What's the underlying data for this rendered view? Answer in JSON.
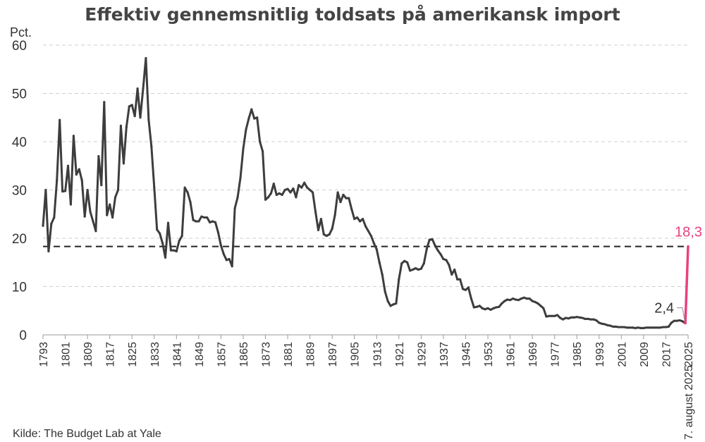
{
  "chart_data": {
    "type": "line",
    "title": "Effektiv gennemsnitlig toldsats på amerikansk import",
    "ylabel": "Pct.",
    "source": "Kilde: The Budget Lab at Yale",
    "ylim": [
      0,
      60
    ],
    "yticks": [
      0,
      10,
      20,
      30,
      40,
      50,
      60
    ],
    "xlim": [
      1793,
      2025
    ],
    "xticks": [
      "1793",
      "1801",
      "1809",
      "1817",
      "1825",
      "1833",
      "1841",
      "1849",
      "1857",
      "1865",
      "1873",
      "1881",
      "1889",
      "1897",
      "1905",
      "1913",
      "1921",
      "1929",
      "1937",
      "1945",
      "1953",
      "1961",
      "1969",
      "1977",
      "1985",
      "1993",
      "2001",
      "2009",
      "2017",
      "2025"
    ],
    "last_tick_label": "7. august 2025",
    "grid": true,
    "colors": {
      "historical": "#3d3d3d",
      "latest": "#e8417f",
      "grid": "#cfcfcf",
      "reference": "#222222"
    },
    "reference_line": {
      "value": 18.3,
      "style": "dashed"
    },
    "annotations": [
      {
        "text": "2,4",
        "x": 2024,
        "y": 2.4
      },
      {
        "text": "18,3",
        "x": 2025,
        "y": 18.3
      }
    ],
    "series": [
      {
        "style": "historical",
        "points": [
          [
            1793,
            22.6
          ],
          [
            1794,
            30.0
          ],
          [
            1795,
            17.3
          ],
          [
            1796,
            23.0
          ],
          [
            1797,
            24.3
          ],
          [
            1798,
            32.0
          ],
          [
            1799,
            44.5
          ],
          [
            1800,
            29.7
          ],
          [
            1801,
            29.8
          ],
          [
            1802,
            35.0
          ],
          [
            1803,
            27.0
          ],
          [
            1804,
            41.2
          ],
          [
            1805,
            33.2
          ],
          [
            1806,
            34.3
          ],
          [
            1807,
            32.0
          ],
          [
            1808,
            24.5
          ],
          [
            1809,
            30.0
          ],
          [
            1810,
            25.5
          ],
          [
            1811,
            23.5
          ],
          [
            1812,
            21.5
          ],
          [
            1813,
            37.0
          ],
          [
            1814,
            31.0
          ],
          [
            1815,
            48.2
          ],
          [
            1816,
            24.8
          ],
          [
            1817,
            27.0
          ],
          [
            1818,
            24.3
          ],
          [
            1819,
            28.5
          ],
          [
            1820,
            30.0
          ],
          [
            1821,
            43.3
          ],
          [
            1822,
            35.5
          ],
          [
            1823,
            43.0
          ],
          [
            1824,
            47.3
          ],
          [
            1825,
            47.6
          ],
          [
            1826,
            45.3
          ],
          [
            1827,
            51.0
          ],
          [
            1828,
            45.0
          ],
          [
            1829,
            51.0
          ],
          [
            1830,
            57.3
          ],
          [
            1831,
            44.5
          ],
          [
            1832,
            39.0
          ],
          [
            1833,
            30.5
          ],
          [
            1834,
            21.8
          ],
          [
            1835,
            21.0
          ],
          [
            1836,
            19.0
          ],
          [
            1837,
            16.0
          ],
          [
            1838,
            23.2
          ],
          [
            1839,
            17.5
          ],
          [
            1840,
            17.5
          ],
          [
            1841,
            17.3
          ],
          [
            1842,
            19.5
          ],
          [
            1843,
            20.5
          ],
          [
            1844,
            30.5
          ],
          [
            1845,
            29.5
          ],
          [
            1846,
            27.5
          ],
          [
            1847,
            23.8
          ],
          [
            1848,
            23.5
          ],
          [
            1849,
            23.5
          ],
          [
            1850,
            24.5
          ],
          [
            1851,
            24.3
          ],
          [
            1852,
            24.3
          ],
          [
            1853,
            23.3
          ],
          [
            1854,
            23.5
          ],
          [
            1855,
            23.3
          ],
          [
            1856,
            21.2
          ],
          [
            1857,
            18.5
          ],
          [
            1858,
            16.7
          ],
          [
            1859,
            15.5
          ],
          [
            1860,
            15.7
          ],
          [
            1861,
            14.2
          ],
          [
            1862,
            26.2
          ],
          [
            1863,
            28.5
          ],
          [
            1864,
            32.5
          ],
          [
            1865,
            38.5
          ],
          [
            1866,
            42.5
          ],
          [
            1867,
            44.8
          ],
          [
            1868,
            46.7
          ],
          [
            1869,
            44.8
          ],
          [
            1870,
            45.0
          ],
          [
            1871,
            40.0
          ],
          [
            1872,
            38.0
          ],
          [
            1873,
            28.0
          ],
          [
            1874,
            28.5
          ],
          [
            1875,
            29.3
          ],
          [
            1876,
            31.3
          ],
          [
            1877,
            29.0
          ],
          [
            1878,
            29.3
          ],
          [
            1879,
            29.0
          ],
          [
            1880,
            30.0
          ],
          [
            1881,
            30.2
          ],
          [
            1882,
            29.5
          ],
          [
            1883,
            30.3
          ],
          [
            1884,
            28.5
          ],
          [
            1885,
            31.0
          ],
          [
            1886,
            30.5
          ],
          [
            1887,
            31.5
          ],
          [
            1888,
            30.5
          ],
          [
            1889,
            30.0
          ],
          [
            1890,
            29.5
          ],
          [
            1891,
            25.5
          ],
          [
            1892,
            21.7
          ],
          [
            1893,
            24.0
          ],
          [
            1894,
            20.8
          ],
          [
            1895,
            20.5
          ],
          [
            1896,
            20.8
          ],
          [
            1897,
            22.0
          ],
          [
            1898,
            24.8
          ],
          [
            1899,
            29.5
          ],
          [
            1900,
            27.5
          ],
          [
            1901,
            29.0
          ],
          [
            1902,
            28.3
          ],
          [
            1903,
            28.3
          ],
          [
            1904,
            26.0
          ],
          [
            1905,
            24.0
          ],
          [
            1906,
            24.3
          ],
          [
            1907,
            23.5
          ],
          [
            1908,
            24.0
          ],
          [
            1909,
            22.5
          ],
          [
            1910,
            21.5
          ],
          [
            1911,
            20.5
          ],
          [
            1912,
            19.0
          ],
          [
            1913,
            17.7
          ],
          [
            1914,
            15.0
          ],
          [
            1915,
            12.5
          ],
          [
            1916,
            9.0
          ],
          [
            1917,
            7.0
          ],
          [
            1918,
            6.0
          ],
          [
            1919,
            6.3
          ],
          [
            1920,
            6.5
          ],
          [
            1921,
            11.5
          ],
          [
            1922,
            14.8
          ],
          [
            1923,
            15.3
          ],
          [
            1924,
            15.0
          ],
          [
            1925,
            13.3
          ],
          [
            1926,
            13.5
          ],
          [
            1927,
            13.8
          ],
          [
            1928,
            13.5
          ],
          [
            1929,
            13.7
          ],
          [
            1930,
            14.8
          ],
          [
            1931,
            17.8
          ],
          [
            1932,
            19.7
          ],
          [
            1933,
            19.8
          ],
          [
            1934,
            18.5
          ],
          [
            1935,
            17.5
          ],
          [
            1936,
            16.7
          ],
          [
            1937,
            15.7
          ],
          [
            1938,
            15.5
          ],
          [
            1939,
            14.5
          ],
          [
            1940,
            12.5
          ],
          [
            1941,
            13.5
          ],
          [
            1942,
            11.5
          ],
          [
            1943,
            11.5
          ],
          [
            1944,
            9.5
          ],
          [
            1945,
            9.3
          ],
          [
            1946,
            9.8
          ],
          [
            1947,
            7.5
          ],
          [
            1948,
            5.7
          ],
          [
            1949,
            5.8
          ],
          [
            1950,
            6.0
          ],
          [
            1951,
            5.5
          ],
          [
            1952,
            5.3
          ],
          [
            1953,
            5.5
          ],
          [
            1954,
            5.2
          ],
          [
            1955,
            5.5
          ],
          [
            1956,
            5.7
          ],
          [
            1957,
            5.8
          ],
          [
            1958,
            6.5
          ],
          [
            1959,
            7.0
          ],
          [
            1960,
            7.3
          ],
          [
            1961,
            7.2
          ],
          [
            1962,
            7.5
          ],
          [
            1963,
            7.3
          ],
          [
            1964,
            7.2
          ],
          [
            1965,
            7.5
          ],
          [
            1966,
            7.7
          ],
          [
            1967,
            7.5
          ],
          [
            1968,
            7.5
          ],
          [
            1969,
            7.0
          ],
          [
            1970,
            6.8
          ],
          [
            1971,
            6.5
          ],
          [
            1972,
            6.0
          ],
          [
            1973,
            5.5
          ],
          [
            1974,
            3.8
          ],
          [
            1975,
            3.9
          ],
          [
            1976,
            3.9
          ],
          [
            1977,
            3.9
          ],
          [
            1978,
            4.1
          ],
          [
            1979,
            3.5
          ],
          [
            1980,
            3.2
          ],
          [
            1981,
            3.5
          ],
          [
            1982,
            3.4
          ],
          [
            1983,
            3.6
          ],
          [
            1984,
            3.6
          ],
          [
            1985,
            3.7
          ],
          [
            1986,
            3.6
          ],
          [
            1987,
            3.5
          ],
          [
            1988,
            3.3
          ],
          [
            1989,
            3.3
          ],
          [
            1990,
            3.2
          ],
          [
            1991,
            3.2
          ],
          [
            1992,
            3.0
          ],
          [
            1993,
            2.5
          ],
          [
            1994,
            2.3
          ],
          [
            1995,
            2.2
          ],
          [
            1996,
            2.0
          ],
          [
            1997,
            1.9
          ],
          [
            1998,
            1.7
          ],
          [
            1999,
            1.7
          ],
          [
            2000,
            1.6
          ],
          [
            2001,
            1.6
          ],
          [
            2002,
            1.6
          ],
          [
            2003,
            1.5
          ],
          [
            2004,
            1.5
          ],
          [
            2005,
            1.5
          ],
          [
            2006,
            1.4
          ],
          [
            2007,
            1.5
          ],
          [
            2008,
            1.4
          ],
          [
            2009,
            1.4
          ],
          [
            2010,
            1.5
          ],
          [
            2011,
            1.5
          ],
          [
            2012,
            1.5
          ],
          [
            2013,
            1.5
          ],
          [
            2014,
            1.5
          ],
          [
            2015,
            1.5
          ],
          [
            2016,
            1.6
          ],
          [
            2017,
            1.6
          ],
          [
            2018,
            1.7
          ],
          [
            2019,
            2.5
          ],
          [
            2020,
            2.9
          ],
          [
            2021,
            2.9
          ],
          [
            2022,
            3.0
          ],
          [
            2023,
            2.8
          ],
          [
            2024,
            2.4
          ]
        ]
      },
      {
        "style": "latest",
        "points": [
          [
            2024,
            2.4
          ],
          [
            2025,
            18.3
          ]
        ]
      }
    ]
  }
}
